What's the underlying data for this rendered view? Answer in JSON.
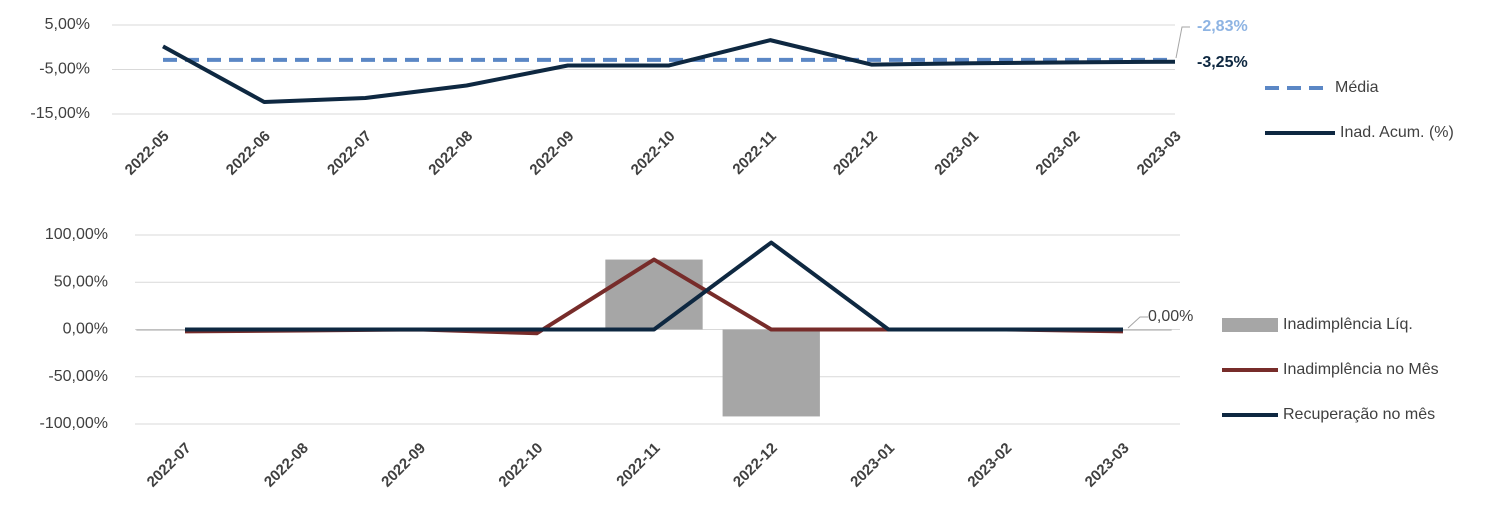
{
  "chart_data": [
    {
      "type": "line",
      "categories": [
        "2022-05",
        "2022-06",
        "2022-07",
        "2022-08",
        "2022-09",
        "2022-10",
        "2022-11",
        "2022-12",
        "2023-01",
        "2023-02",
        "2023-03"
      ],
      "ylim": [
        -15,
        5
      ],
      "yticks": [
        {
          "value": 5,
          "label": "5,00%"
        },
        {
          "value": -5,
          "label": "-5,00%"
        },
        {
          "value": -15,
          "label": "-15,00%"
        }
      ],
      "grid": true,
      "legend": "right",
      "series": [
        {
          "name": "Média",
          "color": "#5b87c5",
          "dashed": true,
          "values": [
            -2.83,
            -2.83,
            -2.83,
            -2.83,
            -2.83,
            -2.83,
            -2.83,
            -2.83,
            -2.83,
            -2.83,
            -2.83
          ],
          "value_labels": [
            null,
            null,
            null,
            null,
            null,
            null,
            null,
            null,
            null,
            null,
            "-2,83%"
          ]
        },
        {
          "name": "Inad. Acum. (%)",
          "color": "#0e2841",
          "values": [
            0.2,
            -12.3,
            -11.4,
            -8.6,
            -4.1,
            -4.1,
            1.6,
            -3.9,
            -3.6,
            -3.4,
            -3.25
          ],
          "value_labels": [
            null,
            null,
            null,
            null,
            null,
            null,
            null,
            null,
            null,
            null,
            "-3,25%"
          ]
        }
      ]
    },
    {
      "type": "bar-line",
      "categories": [
        "2022-07",
        "2022-08",
        "2022-09",
        "2022-10",
        "2022-11",
        "2022-12",
        "2023-01",
        "2023-02",
        "2023-03"
      ],
      "ylim": [
        -100,
        100
      ],
      "yticks": [
        {
          "value": 100,
          "label": "100,00%"
        },
        {
          "value": 50,
          "label": "50,00%"
        },
        {
          "value": 0,
          "label": "0,00%"
        },
        {
          "value": -50,
          "label": "-50,00%"
        },
        {
          "value": -100,
          "label": "-100,00%"
        }
      ],
      "grid": true,
      "legend": "right",
      "series": [
        {
          "name": "Inadimplência Líq.",
          "color": "#a6a6a6",
          "kind": "bar",
          "values": [
            -1,
            0,
            0,
            -1,
            74,
            -92,
            0,
            0,
            0
          ]
        },
        {
          "name": "Inadimplência no Mês",
          "color": "#772c2a",
          "kind": "line",
          "values": [
            -2,
            -1,
            0,
            -4,
            74,
            0,
            0,
            0,
            -2
          ]
        },
        {
          "name": "Recuperação no mês",
          "color": "#0e2841",
          "kind": "line",
          "values": [
            0,
            0,
            0,
            0,
            0,
            92,
            0,
            0,
            0
          ],
          "value_labels": [
            null,
            null,
            null,
            null,
            null,
            null,
            null,
            null,
            "0,00%"
          ]
        }
      ]
    }
  ]
}
